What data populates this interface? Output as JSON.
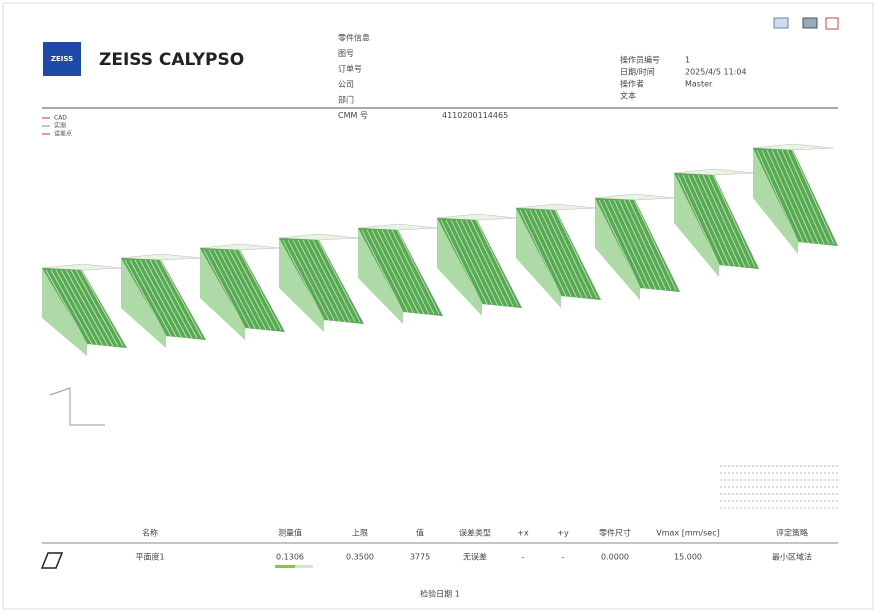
{
  "header": {
    "logo": "ZEISS",
    "title": "ZEISS CALYPSO",
    "left_fields": [
      {
        "label": "零件信息"
      },
      {
        "label": "图号"
      },
      {
        "label": "订单号"
      },
      {
        "label": "公司"
      },
      {
        "label": "部门"
      },
      {
        "label": "CMM 号",
        "value": "4110200114465"
      }
    ],
    "right_fields": [
      {
        "label": "操作员编号",
        "value": "1"
      },
      {
        "label": "日期/时间",
        "value": "2025/4/5 11:04"
      },
      {
        "label": "操作者",
        "value": "Master"
      },
      {
        "label": "文本"
      }
    ]
  },
  "legend": [
    "CAD",
    "实测",
    "误差点"
  ],
  "table": {
    "headers": [
      "名称",
      "测量值",
      "上限",
      "值",
      "误差类型",
      "+x",
      "+y",
      "零件尺寸",
      "Vmax [mm/sec]",
      "评定策略"
    ],
    "rows": [
      [
        "平面度1",
        "0.1306",
        "0.3500",
        "3775",
        "无误差",
        "-",
        "-",
        "0.0000",
        "15.000",
        "最小区域法"
      ]
    ]
  },
  "footer": "检验日期 1"
}
